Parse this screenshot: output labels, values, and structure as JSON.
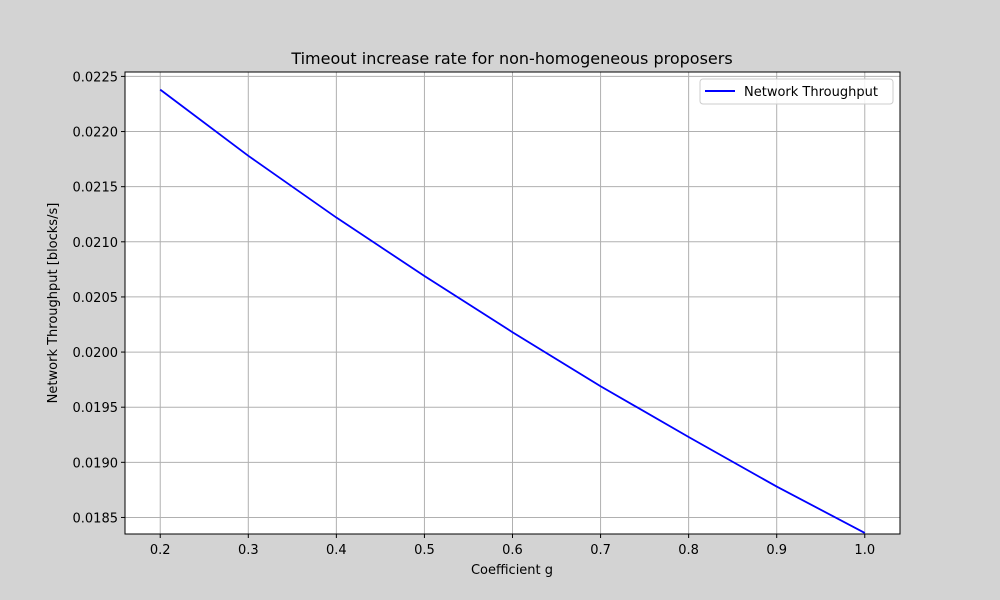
{
  "chart_data": {
    "type": "line",
    "title": "Timeout increase rate for non-homogeneous proposers",
    "xlabel": "Coefficient g",
    "ylabel": "Network Throughput [blocks/s]",
    "xlim": [
      0.16,
      1.04
    ],
    "ylim": [
      0.01835,
      0.02254
    ],
    "x_ticks": [
      0.2,
      0.3,
      0.4,
      0.5,
      0.6,
      0.7,
      0.8,
      0.9,
      1.0
    ],
    "x_tick_labels": [
      "0.2",
      "0.3",
      "0.4",
      "0.5",
      "0.6",
      "0.7",
      "0.8",
      "0.9",
      "1.0"
    ],
    "y_ticks": [
      0.0185,
      0.019,
      0.0195,
      0.02,
      0.0205,
      0.021,
      0.0215,
      0.022,
      0.0225
    ],
    "y_tick_labels": [
      "0.0185",
      "0.0190",
      "0.0195",
      "0.0200",
      "0.0205",
      "0.0210",
      "0.0215",
      "0.0220",
      "0.0225"
    ],
    "grid": true,
    "legend_position": "top-right",
    "series": [
      {
        "name": "Network Throughput",
        "color": "#0000ff",
        "x": [
          0.2,
          0.3,
          0.4,
          0.5,
          0.6,
          0.7,
          0.8,
          0.9,
          1.0
        ],
        "y": [
          0.02238,
          0.02178,
          0.02122,
          0.02069,
          0.02018,
          0.01969,
          0.01923,
          0.01878,
          0.01836
        ]
      }
    ]
  }
}
